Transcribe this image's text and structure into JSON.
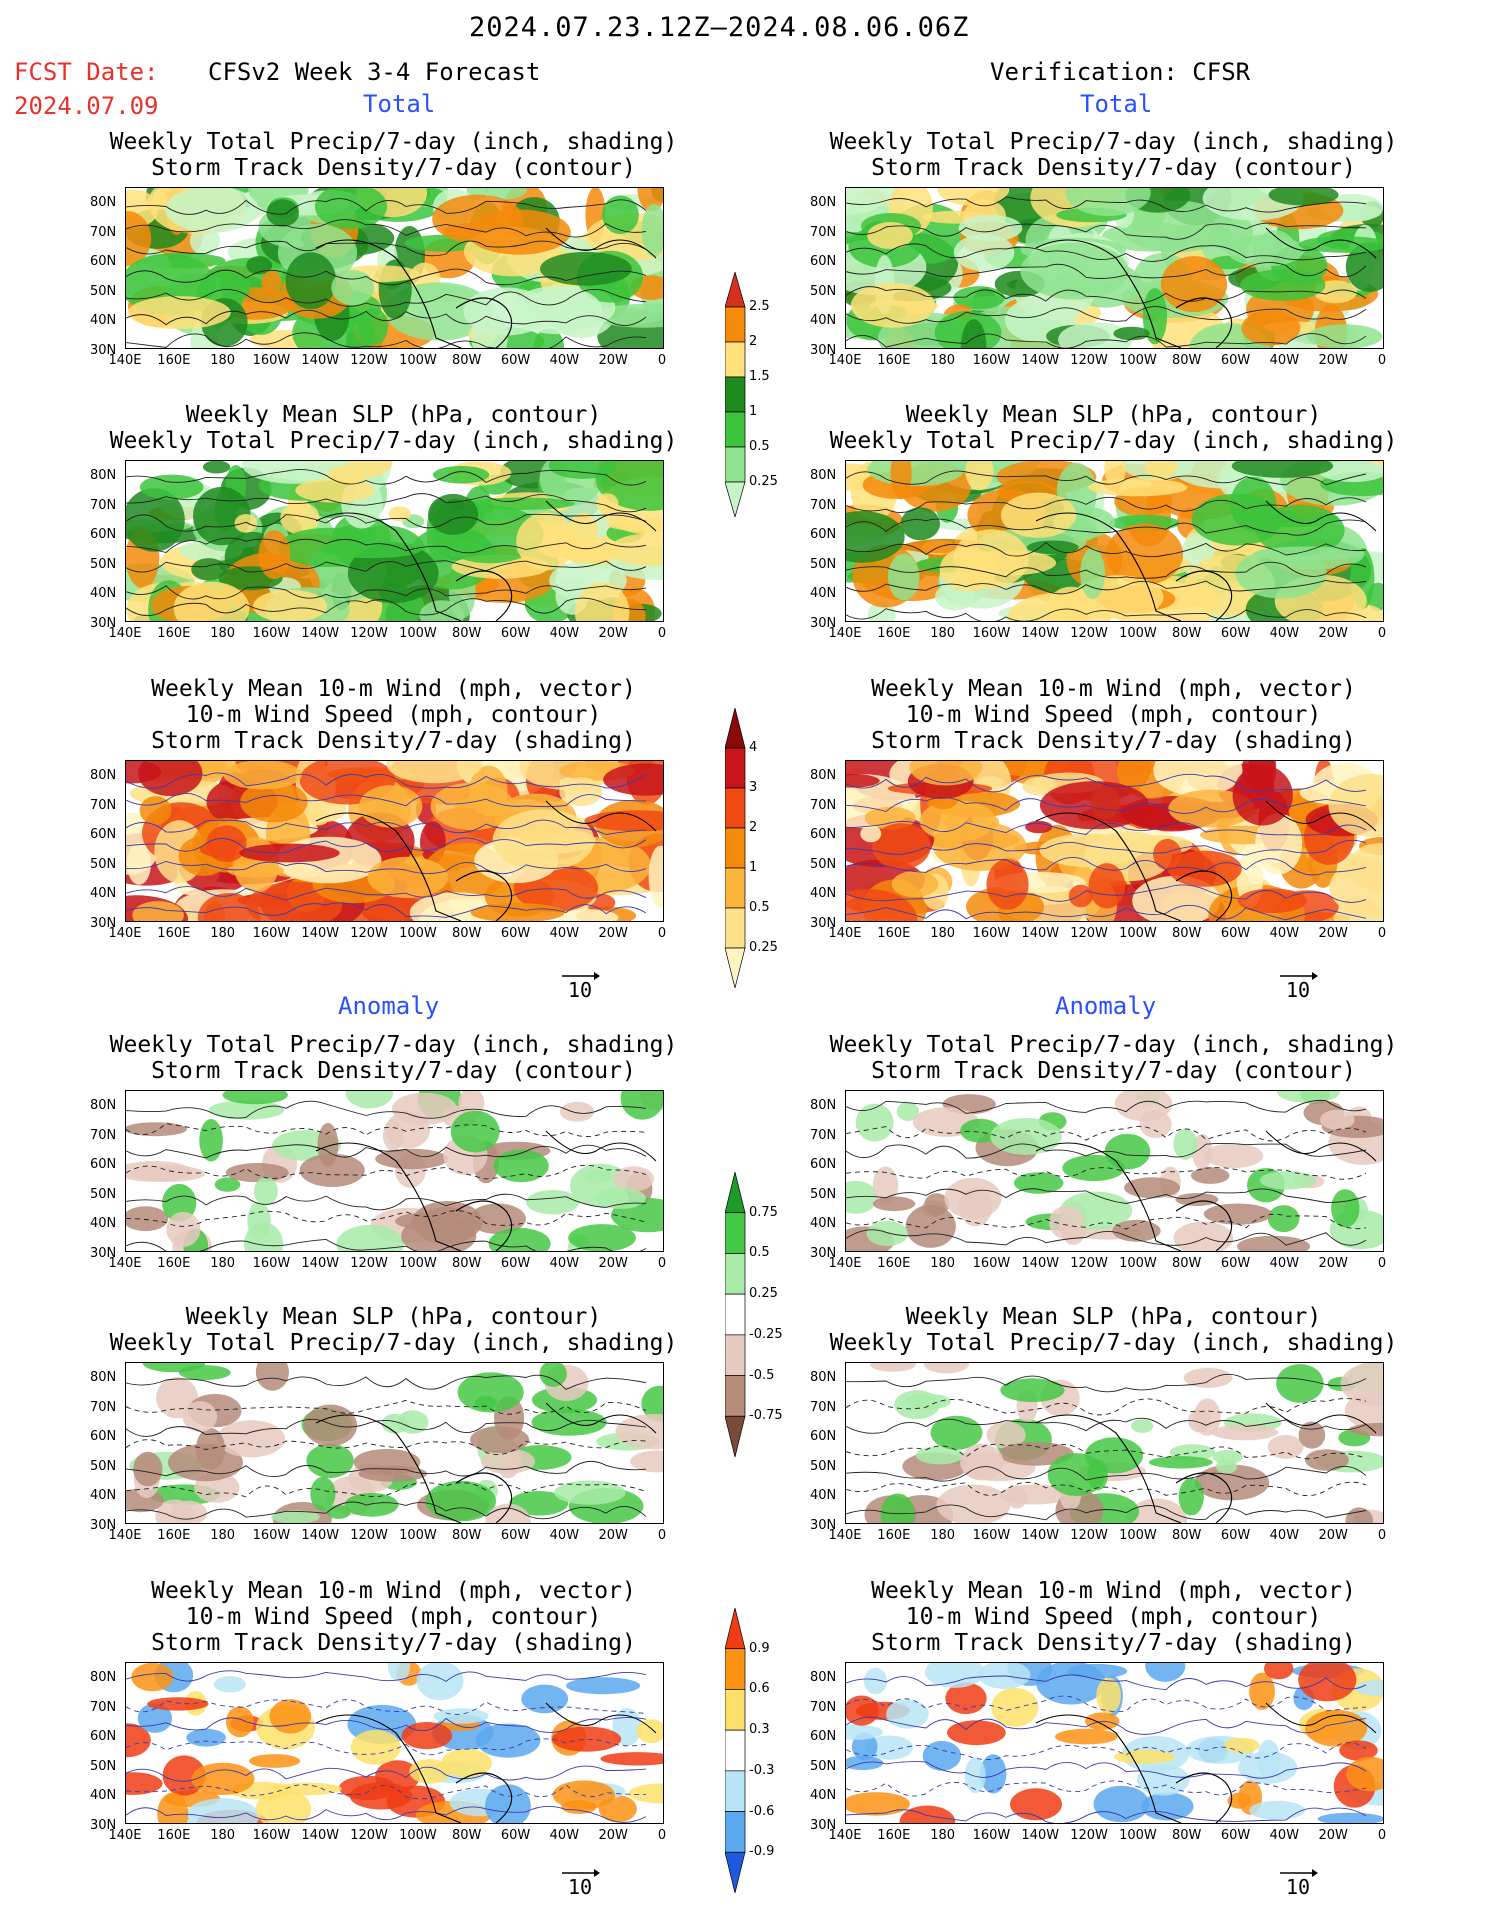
{
  "header": {
    "period": "2024.07.23.12Z–2024.08.06.06Z",
    "fcst_label": "FCST Date:",
    "fcst_date": "2024.07.09",
    "left_title": "CFSv2 Week 3-4 Forecast",
    "right_title": "Verification: CFSR",
    "total_label": "Total",
    "anomaly_label": "Anomaly"
  },
  "panel_titles": {
    "precip_storm": [
      "Weekly Total Precip/7-day (inch, shading)",
      "Storm Track Density/7-day (contour)"
    ],
    "slp_precip": [
      "Weekly Mean SLP (hPa, contour)",
      "Weekly Total Precip/7-day (inch, shading)"
    ],
    "wind_storm": [
      "Weekly Mean 10-m Wind (mph, vector)",
      "10-m Wind Speed (mph, contour)",
      "Storm Track Density/7-day (shading)"
    ]
  },
  "axes": {
    "lat_labels": [
      "80N",
      "70N",
      "60N",
      "50N",
      "40N",
      "30N"
    ],
    "lon_labels": [
      "140E",
      "160E",
      "180",
      "160W",
      "140W",
      "120W",
      "100W",
      "80W",
      "60W",
      "40W",
      "20W",
      "0"
    ]
  },
  "colorbars": {
    "precip_total": {
      "labels": [
        "2.5",
        "2",
        "1.5",
        "1",
        "0.5",
        "0.25"
      ],
      "colors": [
        "#d7301f",
        "#f58a0b",
        "#ffe07a",
        "#1e8a1e",
        "#3cc43c",
        "#8fe38f",
        "#c8f5c8"
      ]
    },
    "storm_total": {
      "labels": [
        "4",
        "3",
        "2",
        "1",
        "0.5",
        "0.25"
      ],
      "colors": [
        "#8a0a0a",
        "#c8141a",
        "#f04a14",
        "#f58a0b",
        "#fbb43c",
        "#fde08a",
        "#fff5c0"
      ]
    },
    "precip_anom": {
      "labels": [
        "0.75",
        "0.5",
        "0.25",
        "-0.25",
        "-0.5",
        "-0.75"
      ],
      "colors": [
        "#1e9a2a",
        "#45c845",
        "#a8eba8",
        "#ffffff",
        "#e6cabf",
        "#b58b7a",
        "#7a4a3a"
      ]
    },
    "storm_anom": {
      "labels": [
        "0.9",
        "0.6",
        "0.3",
        "-0.3",
        "-0.6",
        "-0.9"
      ],
      "colors": [
        "#f03c14",
        "#fb9214",
        "#fde06a",
        "#ffffff",
        "#b8e4f5",
        "#5aa8ee",
        "#1e5ae0"
      ]
    }
  },
  "vector_ref": "10"
}
